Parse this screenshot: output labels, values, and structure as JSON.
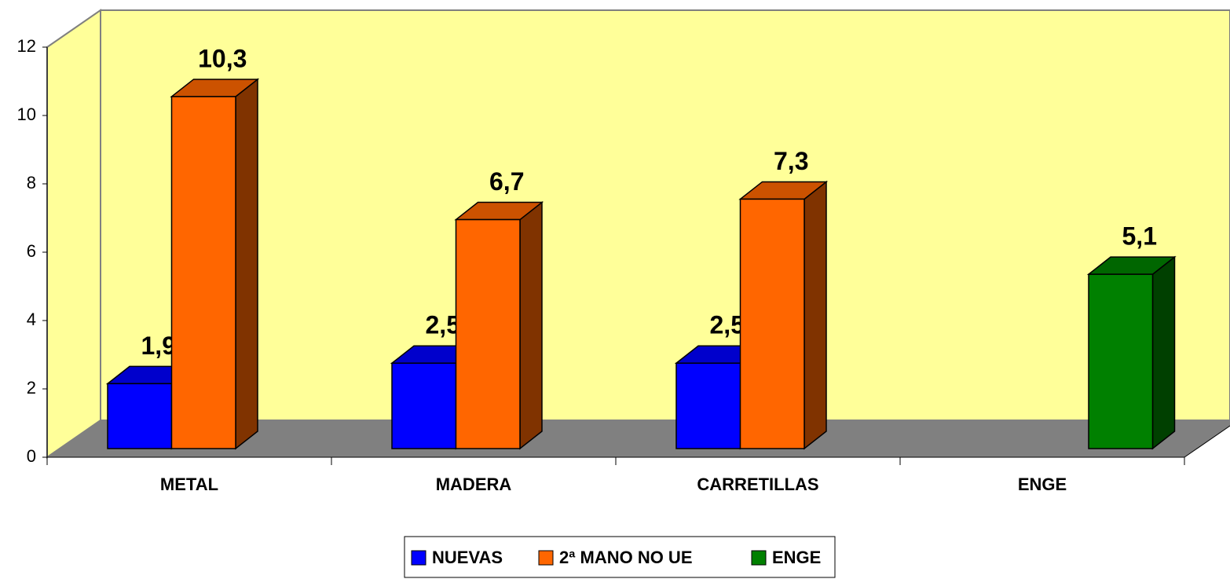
{
  "chart_data": {
    "type": "bar3d",
    "categories": [
      "METAL",
      "MADERA",
      "CARRETILLAS",
      "ENGE"
    ],
    "series": [
      {
        "name": "NUEVAS",
        "color": "#0000ff",
        "values": [
          1.9,
          2.5,
          2.5,
          null
        ],
        "value_labels": [
          "1,9",
          "2,5",
          "2,5",
          null
        ]
      },
      {
        "name": "2ª MANO NO UE",
        "color": "#ff6600",
        "values": [
          10.3,
          6.7,
          7.3,
          null
        ],
        "value_labels": [
          "10,3",
          "6,7",
          "7,3",
          null
        ]
      },
      {
        "name": "ENGE",
        "color": "#008000",
        "values": [
          null,
          null,
          null,
          5.1
        ],
        "value_labels": [
          null,
          null,
          null,
          "5,1"
        ]
      }
    ],
    "ylim": [
      0,
      12
    ],
    "yticks": [
      0,
      2,
      4,
      6,
      8,
      10,
      12
    ],
    "wall_color": "#ffff99",
    "floor_color": "#808080",
    "grid": false,
    "legend": "bottom"
  }
}
